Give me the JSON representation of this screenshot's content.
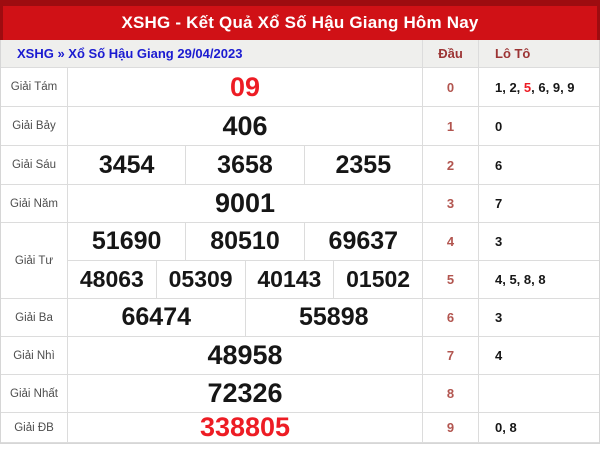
{
  "title": "XSHG - Kết Quả Xổ Số Hậu Giang Hôm Nay",
  "breadcrumb": "XSHG » Xổ Số Hậu Giang 29/04/2023",
  "columns": {
    "dau": "Đầu",
    "loto": "Lô Tô"
  },
  "colors": {
    "band_red": "#d01116",
    "band_dark_red": "#9e0c10",
    "highlight_red": "#ed1c24",
    "breadcrumb_blue": "#1b1bd1",
    "column_head_maroon": "#9c3434",
    "dau_digit": "#b2554f"
  },
  "rows": [
    {
      "label": "Giải Tám",
      "numbers": [
        "09"
      ],
      "dau": "0",
      "loto_parts": [
        "1, 2, ",
        "5",
        ", 6, 9, 9"
      ]
    },
    {
      "label": "Giải Bảy",
      "numbers": [
        "406"
      ],
      "dau": "1",
      "loto": "0"
    },
    {
      "label": "Giải Sáu",
      "numbers": [
        "3454",
        "3658",
        "2355"
      ],
      "dau": "2",
      "loto": "6"
    },
    {
      "label": "Giải Năm",
      "numbers": [
        "9001"
      ],
      "dau": "3",
      "loto": "7"
    },
    {
      "label": "Giải Tư",
      "numbers": [
        "51690",
        "80510",
        "69637"
      ],
      "dau": "4",
      "loto": "3"
    },
    {
      "label": "",
      "numbers": [
        "48063",
        "05309",
        "40143",
        "01502"
      ],
      "dau": "5",
      "loto": "4, 5, 8, 8"
    },
    {
      "label": "Giải Ba",
      "numbers": [
        "66474",
        "55898"
      ],
      "dau": "6",
      "loto": "3"
    },
    {
      "label": "Giải Nhì",
      "numbers": [
        "48958"
      ],
      "dau": "7",
      "loto": "4"
    },
    {
      "label": "Giải Nhất",
      "numbers": [
        "72326"
      ],
      "dau": "8",
      "loto": ""
    },
    {
      "label": "Giải ĐB",
      "numbers": [
        "338805"
      ],
      "dau": "9",
      "loto": "0, 8"
    }
  ]
}
